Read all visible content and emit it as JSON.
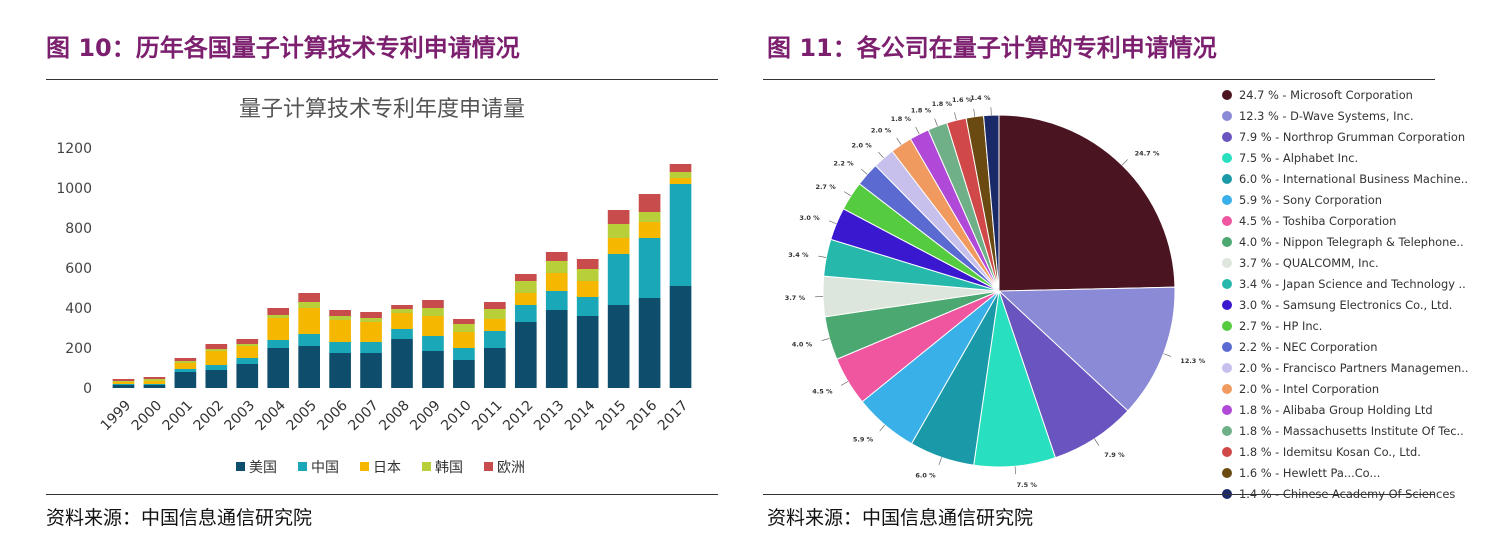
{
  "left": {
    "title": "图 10：历年各国量子计算技术专利申请情况",
    "source": "资料来源：中国信息通信研究院"
  },
  "right": {
    "title": "图 11：各公司在量子计算的专利申请情况",
    "source": "资料来源：中国信息通信研究院"
  },
  "chart_data": [
    {
      "type": "bar",
      "stacked": true,
      "title": "量子计算技术专利年度申请量",
      "categories": [
        "1999",
        "2000",
        "2001",
        "2002",
        "2003",
        "2004",
        "2005",
        "2006",
        "2007",
        "2008",
        "2009",
        "2010",
        "2011",
        "2012",
        "2013",
        "2014",
        "2015",
        "2016",
        "2017"
      ],
      "series": [
        {
          "name": "美国",
          "color": "#0e4d6b",
          "values": [
            15,
            15,
            80,
            90,
            120,
            200,
            210,
            175,
            175,
            245,
            185,
            140,
            200,
            330,
            390,
            360,
            415,
            450,
            510
          ]
        },
        {
          "name": "中国",
          "color": "#1aa7b8",
          "values": [
            5,
            5,
            15,
            25,
            30,
            40,
            60,
            55,
            55,
            50,
            75,
            60,
            85,
            85,
            95,
            95,
            255,
            300,
            510
          ]
        },
        {
          "name": "日本",
          "color": "#f5b700",
          "values": [
            10,
            15,
            30,
            70,
            60,
            110,
            130,
            110,
            100,
            80,
            100,
            80,
            60,
            60,
            90,
            80,
            80,
            80,
            30
          ]
        },
        {
          "name": "韩国",
          "color": "#b8cf3a",
          "values": [
            5,
            10,
            10,
            10,
            10,
            15,
            30,
            20,
            20,
            20,
            40,
            40,
            50,
            60,
            60,
            60,
            70,
            50,
            30
          ]
        },
        {
          "name": "欧洲",
          "color": "#c84c4c",
          "values": [
            10,
            10,
            15,
            25,
            25,
            35,
            45,
            30,
            30,
            20,
            40,
            25,
            35,
            35,
            45,
            50,
            70,
            90,
            40
          ]
        }
      ],
      "yticks": [
        "1200",
        "1000",
        "800",
        "600",
        "400",
        "200",
        "0"
      ],
      "ylim": [
        0,
        1200
      ]
    },
    {
      "type": "pie",
      "entries": [
        {
          "name": "Microsoft Corporation",
          "value": 24.7,
          "legend": "24.7 % - Microsoft Corporation",
          "label": "24.7 %",
          "color": "#4a1520"
        },
        {
          "name": "D-Wave Systems, Inc.",
          "value": 12.3,
          "legend": "12.3 % - D-Wave Systems, Inc.",
          "label": "12.3 %",
          "color": "#8a8ad6"
        },
        {
          "name": "Northrop Grumman Corporation",
          "value": 7.9,
          "legend": "7.9 % - Northrop Grumman Corporation",
          "label": "7.9 %",
          "color": "#6a55c0"
        },
        {
          "name": "Alphabet Inc.",
          "value": 7.5,
          "legend": "7.5 % - Alphabet Inc.",
          "label": "7.5 %",
          "color": "#28e0c0"
        },
        {
          "name": "International Business Machine..",
          "value": 6.0,
          "legend": "6.0 % - International Business Machine..",
          "label": "6.0 %",
          "color": "#1a9aa8"
        },
        {
          "name": "Sony Corporation",
          "value": 5.9,
          "legend": "5.9 % - Sony Corporation",
          "label": "5.9 %",
          "color": "#3ab0e8"
        },
        {
          "name": "Toshiba Corporation",
          "value": 4.5,
          "legend": "4.5 % - Toshiba Corporation",
          "label": "4.5 %",
          "color": "#f055a0"
        },
        {
          "name": "Nippon Telegraph & Telephone..",
          "value": 4.0,
          "legend": "4.0 % - Nippon Telegraph & Telephone..",
          "label": "4.0 %",
          "color": "#4aa870"
        },
        {
          "name": "QUALCOMM, Inc.",
          "value": 3.7,
          "legend": "3.7 % - QUALCOMM, Inc.",
          "label": "3.7 %",
          "color": "#dde6dd"
        },
        {
          "name": "Japan Science and Technology ..",
          "value": 3.4,
          "legend": "3.4 % - Japan Science and Technology ..",
          "label": "3.4 %",
          "color": "#26b8aa"
        },
        {
          "name": "Samsung Electronics Co., Ltd.",
          "value": 3.0,
          "legend": "3.0 % - Samsung Electronics Co., Ltd.",
          "label": "3.0 %",
          "color": "#3a18d0"
        },
        {
          "name": "HP Inc.",
          "value": 2.7,
          "legend": "2.7 % - HP Inc.",
          "label": "2.7 %",
          "color": "#55cc40"
        },
        {
          "name": "NEC Corporation",
          "value": 2.2,
          "legend": "2.2 % - NEC Corporation",
          "label": "2.2 %",
          "color": "#5a6ad0"
        },
        {
          "name": "Francisco Partners Managemen..",
          "value": 2.0,
          "legend": "2.0 % - Francisco Partners Managemen..",
          "label": "2.0 %",
          "color": "#c8c0ec"
        },
        {
          "name": "Intel Corporation",
          "value": 2.0,
          "legend": "2.0 % - Intel Corporation",
          "label": "2.0 %",
          "color": "#f09a60"
        },
        {
          "name": "Alibaba Group Holding Ltd",
          "value": 1.8,
          "legend": "1.8 % - Alibaba Group Holding Ltd",
          "label": "1.8 %",
          "color": "#b048d8"
        },
        {
          "name": "Massachusetts Institute Of Tec..",
          "value": 1.8,
          "legend": "1.8 % - Massachusetts Institute Of Tec..",
          "label": "1.8 %",
          "color": "#6fb088"
        },
        {
          "name": "Idemitsu Kosan Co., Ltd.",
          "value": 1.8,
          "legend": "1.8 % - Idemitsu Kosan Co., Ltd.",
          "label": "1.8 %",
          "color": "#d04848"
        },
        {
          "name": "Hewlett Packard Co...",
          "value": 1.6,
          "legend": "1.6 % - Hewlett Pa...Co...",
          "label": "1.6 %",
          "color": "#6a4a10"
        },
        {
          "name": "Chinese Academy Of Sciences",
          "value": 1.4,
          "legend": "1.4 % - Chinese Academy Of Sciences",
          "label": "1.4 %",
          "color": "#1a2a68"
        }
      ]
    }
  ]
}
